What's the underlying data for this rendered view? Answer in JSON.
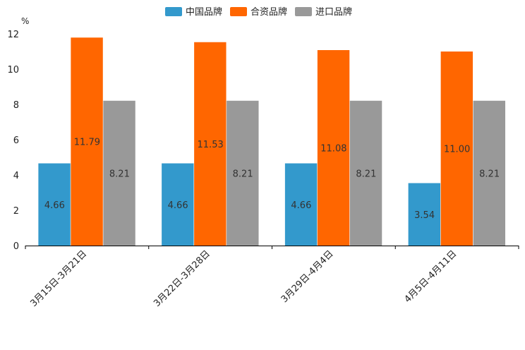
{
  "chart_data": {
    "type": "bar",
    "title": "",
    "xlabel": "",
    "ylabel": "%",
    "ylim": [
      0,
      12
    ],
    "yticks": [
      0,
      2,
      4,
      6,
      8,
      10,
      12
    ],
    "grid": false,
    "legend_position": "top-center",
    "categories": [
      "3月15日-3月21日",
      "3月22日-3月28日",
      "3月29日-4月4日",
      "4月5日-4月11日"
    ],
    "series": [
      {
        "name": "中国品牌",
        "color": "#3399cc",
        "values": [
          4.66,
          4.66,
          4.66,
          3.54
        ],
        "labels": [
          "4.66",
          "4.66",
          "4.66",
          "3.54"
        ]
      },
      {
        "name": "合资品牌",
        "color": "#ff6600",
        "values": [
          11.79,
          11.53,
          11.08,
          11.0
        ],
        "labels": [
          "11.79",
          "11.53",
          "11.08",
          "11.00"
        ]
      },
      {
        "name": "进口品牌",
        "color": "#999999",
        "values": [
          8.21,
          8.21,
          8.21,
          8.21
        ],
        "labels": [
          "8.21",
          "8.21",
          "8.21",
          "8.21"
        ]
      }
    ]
  }
}
